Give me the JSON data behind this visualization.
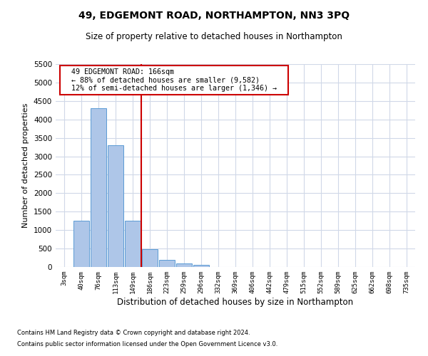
{
  "title": "49, EDGEMONT ROAD, NORTHAMPTON, NN3 3PQ",
  "subtitle": "Size of property relative to detached houses in Northampton",
  "xlabel": "Distribution of detached houses by size in Northampton",
  "ylabel": "Number of detached properties",
  "footnote1": "Contains HM Land Registry data © Crown copyright and database right 2024.",
  "footnote2": "Contains public sector information licensed under the Open Government Licence v3.0.",
  "annotation_line1": "49 EDGEMONT ROAD: 166sqm",
  "annotation_line2": "← 88% of detached houses are smaller (9,582)",
  "annotation_line3": "12% of semi-detached houses are larger (1,346) →",
  "categories": [
    "3sqm",
    "40sqm",
    "76sqm",
    "113sqm",
    "149sqm",
    "186sqm",
    "223sqm",
    "259sqm",
    "296sqm",
    "332sqm",
    "369sqm",
    "406sqm",
    "442sqm",
    "479sqm",
    "515sqm",
    "552sqm",
    "589sqm",
    "625sqm",
    "662sqm",
    "698sqm",
    "735sqm"
  ],
  "bar_values": [
    0,
    1250,
    4300,
    3300,
    1250,
    475,
    200,
    90,
    60,
    0,
    0,
    0,
    0,
    0,
    0,
    0,
    0,
    0,
    0,
    0,
    0
  ],
  "bar_color": "#aec6e8",
  "bar_edge_color": "#5b9bd5",
  "vline_color": "#cc0000",
  "vline_x_index": 4.5,
  "ylim": [
    0,
    5500
  ],
  "yticks": [
    0,
    500,
    1000,
    1500,
    2000,
    2500,
    3000,
    3500,
    4000,
    4500,
    5000,
    5500
  ],
  "annotation_box_color": "#cc0000",
  "background_color": "#ffffff",
  "grid_color": "#d0d8e8"
}
